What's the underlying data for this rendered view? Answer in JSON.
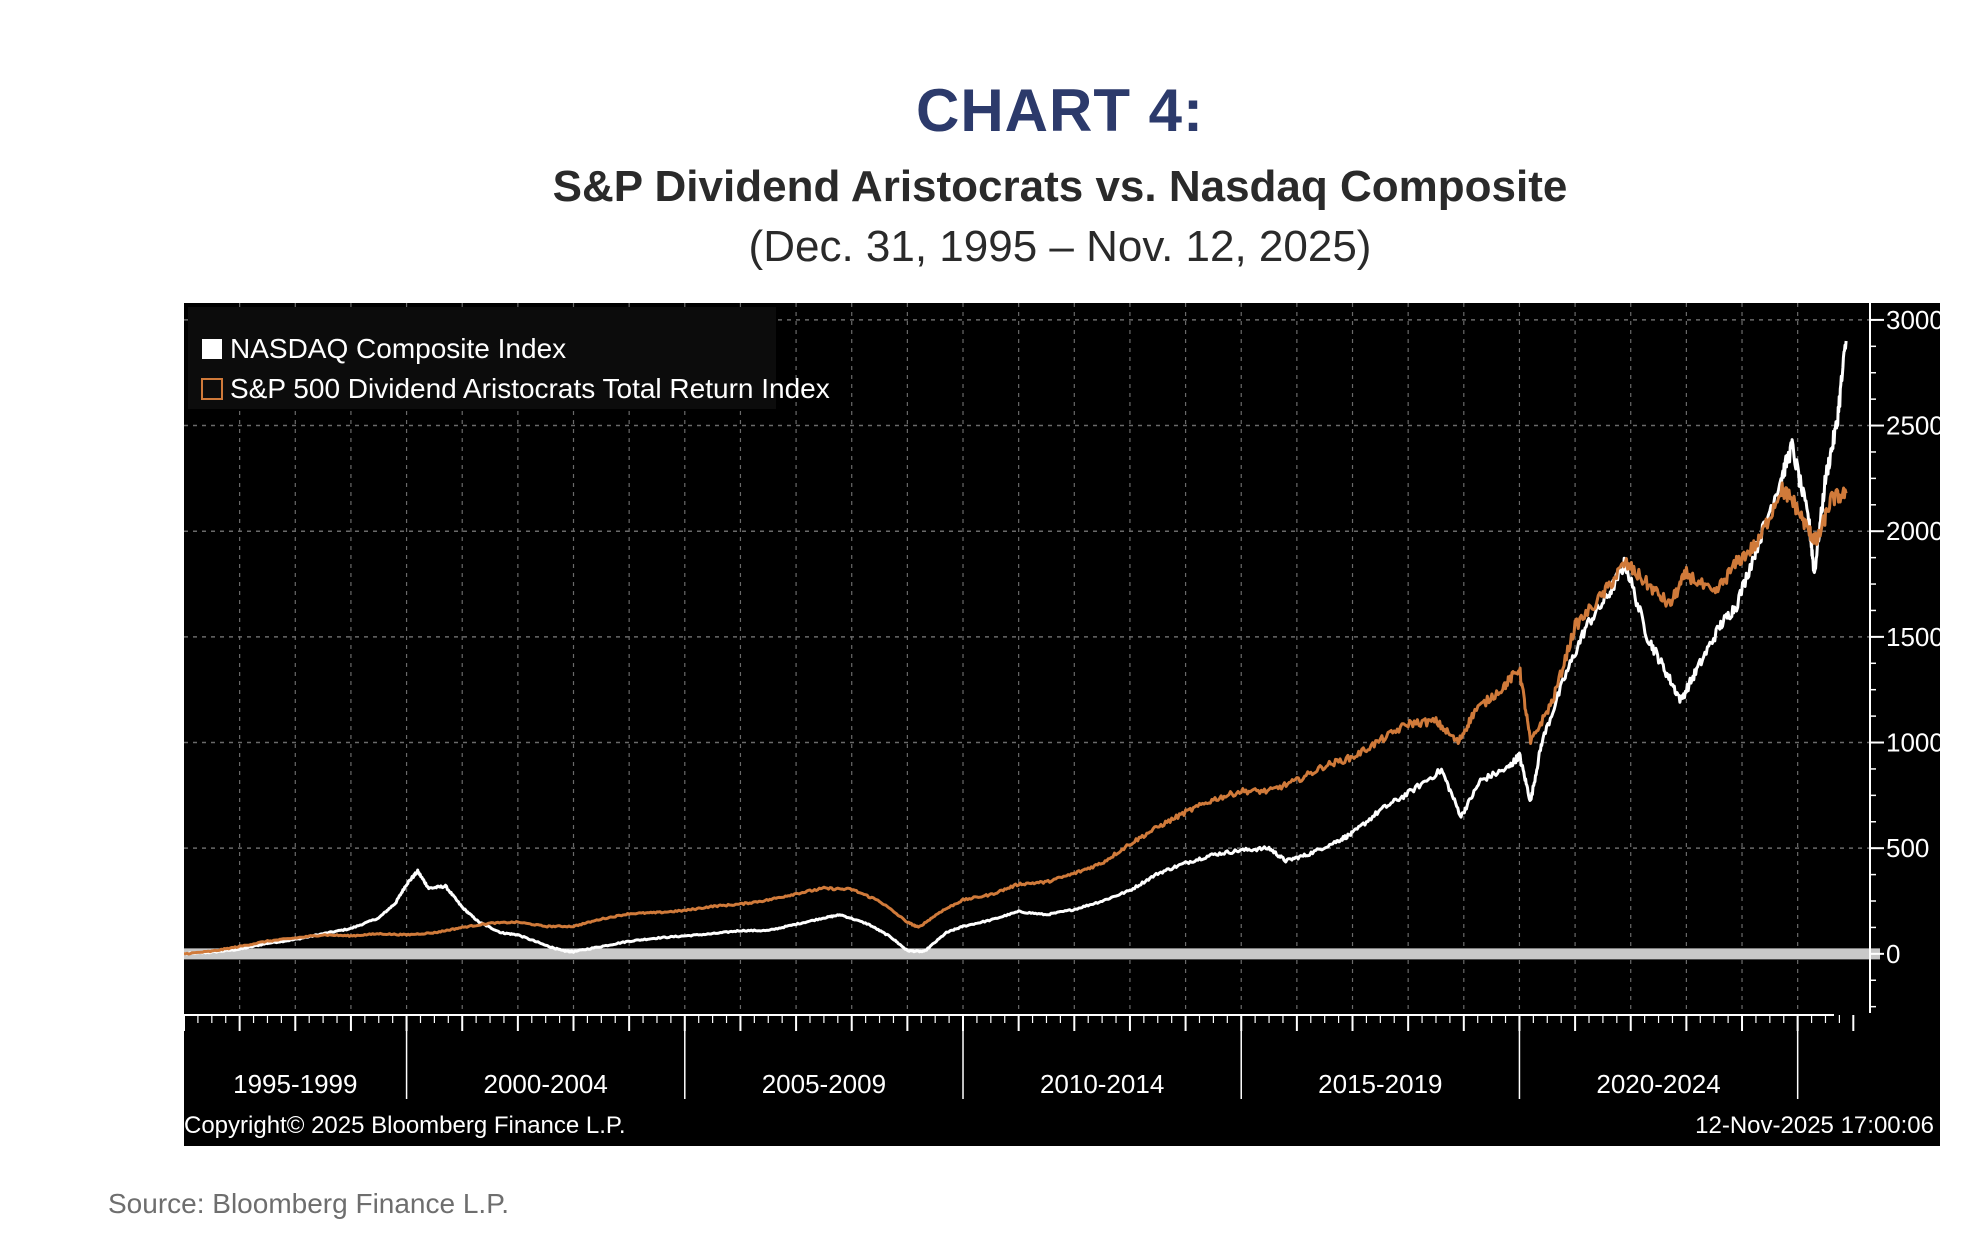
{
  "chart_data": {
    "type": "line",
    "title": "CHART 4:",
    "subtitle": "S&P Dividend Aristocrats vs. Nasdaq Composite",
    "date_range": "(Dec. 31, 1995 – Nov. 12, 2025)",
    "source": "Source: Bloomberg Finance L.P.",
    "copyright": "Copyright© 2025 Bloomberg Finance L.P.",
    "timestamp": "12-Nov-2025 17:00:06",
    "legend_position": "top-left",
    "grid": true,
    "ylim": [
      -280,
      3080
    ],
    "yticks": [
      0,
      500,
      1000,
      1500,
      2000,
      2500,
      3000
    ],
    "ytick_labels": [
      "0",
      "500",
      "1000",
      "1500",
      "2000",
      "2500",
      "3000"
    ],
    "xlim": [
      1996.0,
      2026.3
    ],
    "period_labels": [
      "1995-1999",
      "2000-2004",
      "2005-2009",
      "2010-2014",
      "2015-2019",
      "2020-2024"
    ],
    "period_boundaries": [
      2000.0,
      2005.0,
      2010.0,
      2015.0,
      2020.0,
      2025.0
    ],
    "colors": {
      "background": "#000000",
      "nasdaq": "#ffffff",
      "aristocrats": "#d07a3a",
      "grid": "#6a6a6a",
      "baseline": "#c8c8c8",
      "title": "#2c3a6b"
    },
    "series": [
      {
        "name": "NASDAQ Composite Index",
        "color": "#ffffff",
        "points": [
          [
            1996.0,
            0
          ],
          [
            1996.5,
            8
          ],
          [
            1997.0,
            22
          ],
          [
            1997.5,
            50
          ],
          [
            1998.0,
            68
          ],
          [
            1998.5,
            95
          ],
          [
            1999.0,
            120
          ],
          [
            1999.5,
            170
          ],
          [
            1999.8,
            240
          ],
          [
            2000.0,
            330
          ],
          [
            2000.2,
            390
          ],
          [
            2000.4,
            310
          ],
          [
            2000.7,
            320
          ],
          [
            2001.0,
            220
          ],
          [
            2001.3,
            150
          ],
          [
            2001.7,
            100
          ],
          [
            2002.0,
            90
          ],
          [
            2002.5,
            40
          ],
          [
            2002.8,
            15
          ],
          [
            2003.0,
            10
          ],
          [
            2003.5,
            35
          ],
          [
            2004.0,
            60
          ],
          [
            2004.5,
            75
          ],
          [
            2005.0,
            85
          ],
          [
            2005.5,
            95
          ],
          [
            2006.0,
            110
          ],
          [
            2006.5,
            110
          ],
          [
            2007.0,
            140
          ],
          [
            2007.5,
            170
          ],
          [
            2007.8,
            185
          ],
          [
            2008.3,
            140
          ],
          [
            2008.7,
            80
          ],
          [
            2009.0,
            15
          ],
          [
            2009.3,
            10
          ],
          [
            2009.7,
            100
          ],
          [
            2010.0,
            130
          ],
          [
            2010.5,
            160
          ],
          [
            2011.0,
            200
          ],
          [
            2011.5,
            185
          ],
          [
            2012.0,
            210
          ],
          [
            2012.5,
            250
          ],
          [
            2013.0,
            300
          ],
          [
            2013.5,
            380
          ],
          [
            2014.0,
            430
          ],
          [
            2014.5,
            470
          ],
          [
            2015.0,
            490
          ],
          [
            2015.5,
            500
          ],
          [
            2015.8,
            440
          ],
          [
            2016.2,
            470
          ],
          [
            2016.7,
            530
          ],
          [
            2017.0,
            570
          ],
          [
            2017.5,
            680
          ],
          [
            2018.0,
            760
          ],
          [
            2018.6,
            870
          ],
          [
            2018.95,
            650
          ],
          [
            2019.3,
            820
          ],
          [
            2019.8,
            880
          ],
          [
            2020.0,
            940
          ],
          [
            2020.2,
            720
          ],
          [
            2020.4,
            1000
          ],
          [
            2020.8,
            1300
          ],
          [
            2021.2,
            1550
          ],
          [
            2021.6,
            1700
          ],
          [
            2021.9,
            1850
          ],
          [
            2022.3,
            1500
          ],
          [
            2022.6,
            1350
          ],
          [
            2022.9,
            1200
          ],
          [
            2023.2,
            1350
          ],
          [
            2023.6,
            1550
          ],
          [
            2023.9,
            1650
          ],
          [
            2024.3,
            1950
          ],
          [
            2024.7,
            2250
          ],
          [
            2024.9,
            2400
          ],
          [
            2025.2,
            2050
          ],
          [
            2025.3,
            1800
          ],
          [
            2025.5,
            2250
          ],
          [
            2025.7,
            2500
          ],
          [
            2025.87,
            2900
          ]
        ]
      },
      {
        "name": "S&P 500 Dividend Aristocrats Total Return Index",
        "color": "#d07a3a",
        "points": [
          [
            1996.0,
            0
          ],
          [
            1996.5,
            12
          ],
          [
            1997.0,
            35
          ],
          [
            1997.5,
            60
          ],
          [
            1998.0,
            75
          ],
          [
            1998.5,
            90
          ],
          [
            1999.0,
            85
          ],
          [
            1999.5,
            95
          ],
          [
            2000.0,
            90
          ],
          [
            2000.5,
            100
          ],
          [
            2001.0,
            125
          ],
          [
            2001.5,
            145
          ],
          [
            2002.0,
            150
          ],
          [
            2002.5,
            130
          ],
          [
            2003.0,
            130
          ],
          [
            2003.5,
            165
          ],
          [
            2004.0,
            190
          ],
          [
            2004.5,
            195
          ],
          [
            2005.0,
            205
          ],
          [
            2005.5,
            225
          ],
          [
            2006.0,
            235
          ],
          [
            2006.5,
            255
          ],
          [
            2007.0,
            285
          ],
          [
            2007.5,
            310
          ],
          [
            2008.0,
            305
          ],
          [
            2008.5,
            250
          ],
          [
            2009.0,
            150
          ],
          [
            2009.2,
            125
          ],
          [
            2009.6,
            200
          ],
          [
            2010.0,
            255
          ],
          [
            2010.5,
            280
          ],
          [
            2011.0,
            330
          ],
          [
            2011.5,
            340
          ],
          [
            2012.0,
            380
          ],
          [
            2012.5,
            430
          ],
          [
            2013.0,
            520
          ],
          [
            2013.5,
            600
          ],
          [
            2014.0,
            670
          ],
          [
            2014.5,
            730
          ],
          [
            2015.0,
            770
          ],
          [
            2015.5,
            770
          ],
          [
            2016.0,
            820
          ],
          [
            2016.5,
            890
          ],
          [
            2017.0,
            930
          ],
          [
            2017.5,
            1010
          ],
          [
            2018.0,
            1090
          ],
          [
            2018.5,
            1100
          ],
          [
            2018.9,
            1000
          ],
          [
            2019.2,
            1150
          ],
          [
            2019.7,
            1260
          ],
          [
            2020.0,
            1350
          ],
          [
            2020.2,
            1000
          ],
          [
            2020.6,
            1200
          ],
          [
            2021.0,
            1550
          ],
          [
            2021.5,
            1700
          ],
          [
            2021.9,
            1850
          ],
          [
            2022.3,
            1750
          ],
          [
            2022.7,
            1650
          ],
          [
            2023.0,
            1800
          ],
          [
            2023.5,
            1700
          ],
          [
            2023.9,
            1850
          ],
          [
            2024.3,
            1950
          ],
          [
            2024.7,
            2200
          ],
          [
            2024.9,
            2150
          ],
          [
            2025.2,
            2000
          ],
          [
            2025.35,
            1950
          ],
          [
            2025.6,
            2150
          ],
          [
            2025.87,
            2180
          ]
        ]
      }
    ]
  }
}
